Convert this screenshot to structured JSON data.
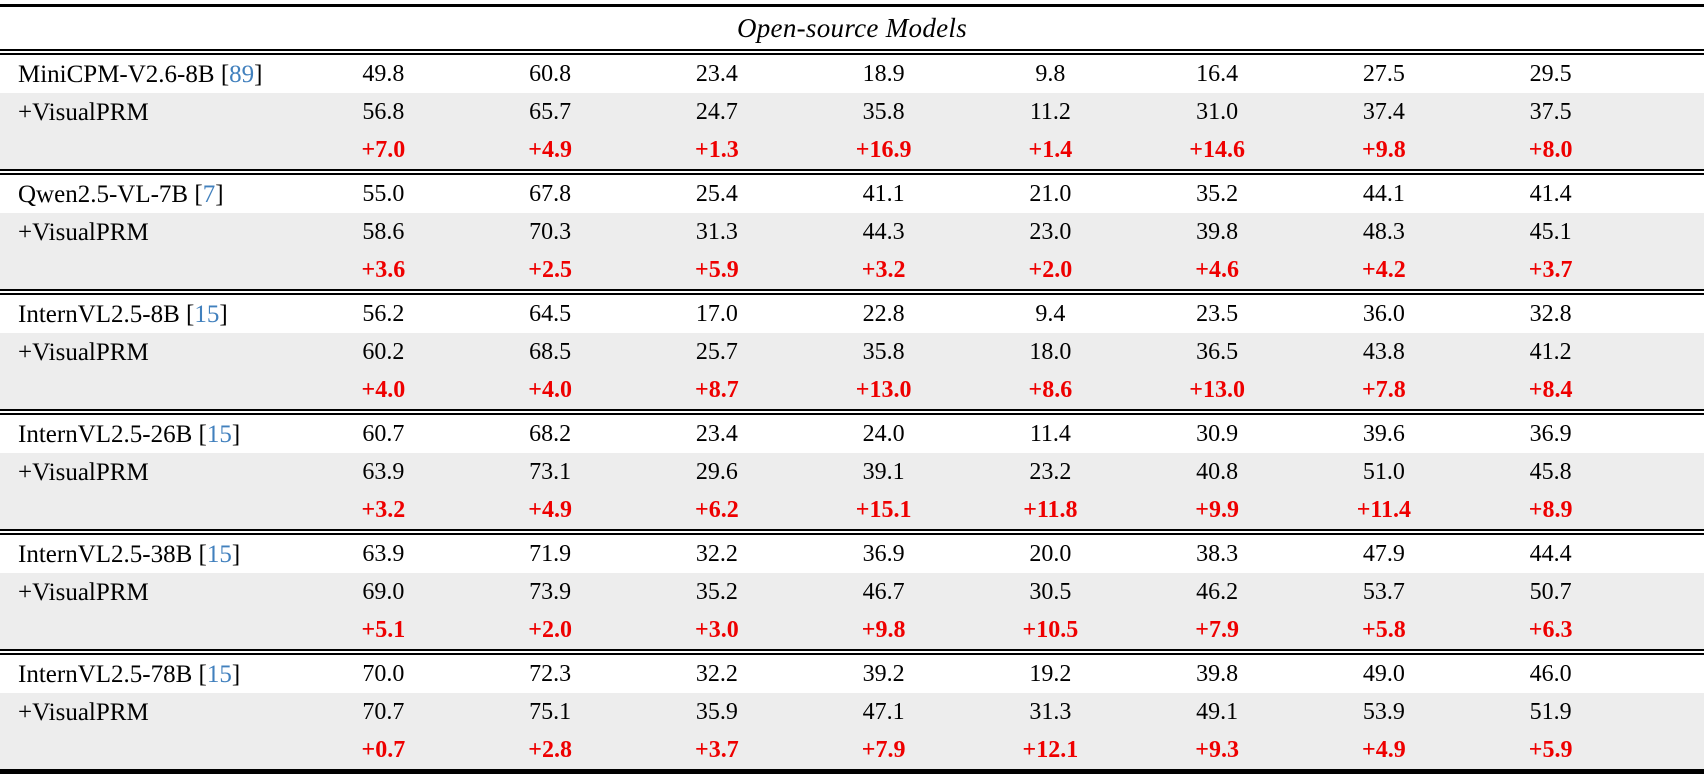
{
  "table": {
    "header": "Open-source Models",
    "colors": {
      "delta_red": "#ee0000",
      "citation_blue": "#4180bd",
      "shaded_row_bg": "#ededed",
      "rule_black": "#000000"
    },
    "prm_row_label": "+VisualPRM",
    "groups": [
      {
        "model": "MiniCPM-V2.6-8B",
        "citation": "89",
        "base": [
          "49.8",
          "60.8",
          "23.4",
          "18.9",
          "9.8",
          "16.4",
          "27.5",
          "29.5"
        ],
        "prm": [
          "56.8",
          "65.7",
          "24.7",
          "35.8",
          "11.2",
          "31.0",
          "37.4",
          "37.5"
        ],
        "delta": [
          "+7.0",
          "+4.9",
          "+1.3",
          "+16.9",
          "+1.4",
          "+14.6",
          "+9.8",
          "+8.0"
        ]
      },
      {
        "model": "Qwen2.5-VL-7B",
        "citation": "7",
        "base": [
          "55.0",
          "67.8",
          "25.4",
          "41.1",
          "21.0",
          "35.2",
          "44.1",
          "41.4"
        ],
        "prm": [
          "58.6",
          "70.3",
          "31.3",
          "44.3",
          "23.0",
          "39.8",
          "48.3",
          "45.1"
        ],
        "delta": [
          "+3.6",
          "+2.5",
          "+5.9",
          "+3.2",
          "+2.0",
          "+4.6",
          "+4.2",
          "+3.7"
        ]
      },
      {
        "model": "InternVL2.5-8B",
        "citation": "15",
        "base": [
          "56.2",
          "64.5",
          "17.0",
          "22.8",
          "9.4",
          "23.5",
          "36.0",
          "32.8"
        ],
        "prm": [
          "60.2",
          "68.5",
          "25.7",
          "35.8",
          "18.0",
          "36.5",
          "43.8",
          "41.2"
        ],
        "delta": [
          "+4.0",
          "+4.0",
          "+8.7",
          "+13.0",
          "+8.6",
          "+13.0",
          "+7.8",
          "+8.4"
        ]
      },
      {
        "model": "InternVL2.5-26B",
        "citation": "15",
        "base": [
          "60.7",
          "68.2",
          "23.4",
          "24.0",
          "11.4",
          "30.9",
          "39.6",
          "36.9"
        ],
        "prm": [
          "63.9",
          "73.1",
          "29.6",
          "39.1",
          "23.2",
          "40.8",
          "51.0",
          "45.8"
        ],
        "delta": [
          "+3.2",
          "+4.9",
          "+6.2",
          "+15.1",
          "+11.8",
          "+9.9",
          "+11.4",
          "+8.9"
        ]
      },
      {
        "model": "InternVL2.5-38B",
        "citation": "15",
        "base": [
          "63.9",
          "71.9",
          "32.2",
          "36.9",
          "20.0",
          "38.3",
          "47.9",
          "44.4"
        ],
        "prm": [
          "69.0",
          "73.9",
          "35.2",
          "46.7",
          "30.5",
          "46.2",
          "53.7",
          "50.7"
        ],
        "delta": [
          "+5.1",
          "+2.0",
          "+3.0",
          "+9.8",
          "+10.5",
          "+7.9",
          "+5.8",
          "+6.3"
        ]
      },
      {
        "model": "InternVL2.5-78B",
        "citation": "15",
        "base": [
          "70.0",
          "72.3",
          "32.2",
          "39.2",
          "19.2",
          "39.8",
          "49.0",
          "46.0"
        ],
        "prm": [
          "70.7",
          "75.1",
          "35.9",
          "47.1",
          "31.3",
          "49.1",
          "53.9",
          "51.9"
        ],
        "delta": [
          "+0.7",
          "+2.8",
          "+3.7",
          "+7.9",
          "+12.1",
          "+9.3",
          "+4.9",
          "+5.9"
        ]
      }
    ]
  }
}
